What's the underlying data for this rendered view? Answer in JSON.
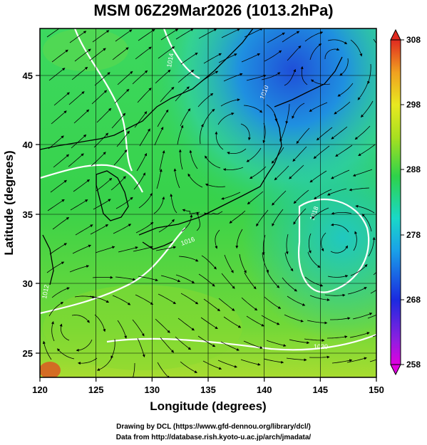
{
  "title": "MSM 06Z29Mar2026 (1013.2hPa)",
  "xaxis": {
    "label": "Longitude (degrees)",
    "ticks": [
      120,
      125,
      130,
      135,
      140,
      145,
      150
    ]
  },
  "yaxis": {
    "label": "Latitude  (degrees)",
    "ticks": [
      25,
      30,
      35,
      40,
      45
    ]
  },
  "colorbar": {
    "ticks": [
      258,
      268,
      278,
      288,
      298,
      308
    ]
  },
  "isobar_labels": [
    "1012",
    "1014",
    "1016",
    "1010",
    "1018",
    "1020"
  ],
  "footer": {
    "line1": "Drawing by DCL (https://www.gfd-dennou.org/library/dcl/)",
    "line2": "Data from http://database.rish.kyoto-u.ac.jp/arch/jmadata/"
  },
  "colors": {
    "cold": "#1f4fd8",
    "mid": "#2fd24a",
    "warm": "#e8e820",
    "hot": "#e23a2a",
    "isobar": "#ffffff"
  }
}
